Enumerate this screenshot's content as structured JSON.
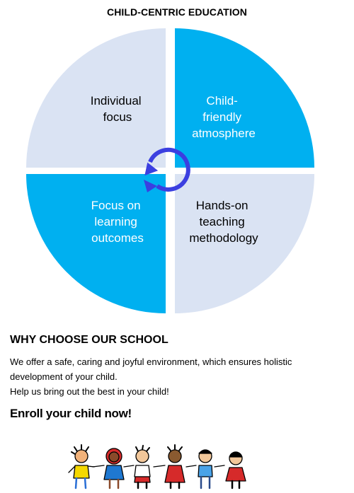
{
  "header": {
    "title": "CHILD-CENTRIC EDUCATION"
  },
  "cycle": {
    "segments": [
      {
        "lines": [
          "Individual",
          "focus"
        ],
        "fill": "#dae3f3",
        "text_color": "#000000"
      },
      {
        "lines": [
          "Child-",
          "friendly",
          "atmosphere"
        ],
        "fill": "#00b0f0",
        "text_color": "#ffffff"
      },
      {
        "lines": [
          "Focus on",
          "learning",
          "outcomes"
        ],
        "fill": "#00b0f0",
        "text_color": "#ffffff"
      },
      {
        "lines": [
          "Hands-on",
          "teaching",
          "methodology"
        ],
        "fill": "#dae3f3",
        "text_color": "#000000"
      }
    ],
    "arrow_color": "#3b3fe0",
    "arrow_icon": "circular-arrow-icon"
  },
  "info": {
    "heading": "WHY CHOOSE  OUR SCHOOL",
    "paragraph1": "We offer a safe, caring and joyful environment,  which ensures holistic development  of your child.",
    "paragraph2": "Help us bring out the best in your child!",
    "cta": "Enroll your child now!"
  },
  "illustration": {
    "icon": "children-holding-hands-icon"
  }
}
